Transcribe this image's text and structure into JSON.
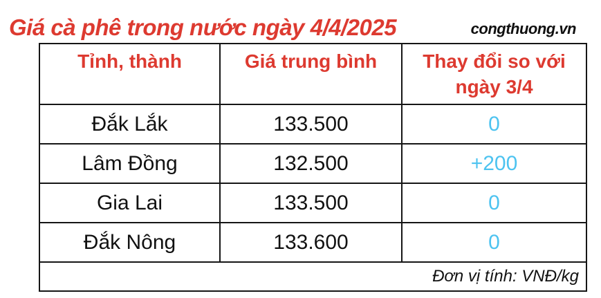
{
  "header": {
    "title": "Giá cà phê trong nước ngày 4/4/2025",
    "watermark": "congthuong.vn"
  },
  "chart_data": {
    "type": "table",
    "title": "Giá cà phê trong nước ngày 4/4/2025",
    "columns": [
      "Tỉnh, thành",
      "Giá trung bình",
      "Thay đổi so với ngày 3/4"
    ],
    "rows": [
      [
        "Đắk Lắk",
        "133.500",
        "0"
      ],
      [
        "Lâm Đồng",
        "132.500",
        "+200"
      ],
      [
        "Gia Lai",
        "133.500",
        "0"
      ],
      [
        "Đắk Nông",
        "133.600",
        "0"
      ]
    ],
    "unit_note": "Đơn vị tính: VNĐ/kg",
    "unit": "VNĐ/kg",
    "compared_to_date": "3/4",
    "date": "4/4/2025"
  },
  "colors": {
    "title_red": "#dd3a30",
    "header_red": "#dd3a30",
    "change_blue": "#4dc3f0",
    "text_black": "#111111",
    "border_black": "#151515",
    "background": "#ffffff"
  }
}
